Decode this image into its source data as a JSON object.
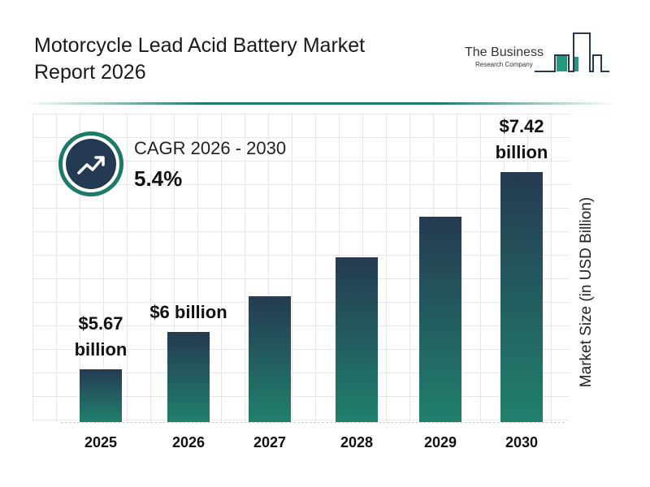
{
  "header": {
    "title": "Motorcycle Lead Acid Battery Market Report 2026",
    "logo": {
      "line1": "The Business",
      "line2": "Research Company"
    }
  },
  "cagr": {
    "label": "CAGR 2026 - 2030",
    "value": "5.4%",
    "icon": "trending-up-icon"
  },
  "colors": {
    "bar_top": "#253a52",
    "bar_bottom": "#20806c",
    "accent": "#1e7a68"
  },
  "chart_data": {
    "type": "bar",
    "categories": [
      "2025",
      "2026",
      "2027",
      "2028",
      "2029",
      "2030"
    ],
    "values": [
      5.67,
      6,
      6.32,
      6.66,
      7.02,
      7.42
    ],
    "data_labels": [
      "$5.67 billion",
      "$6 billion",
      "",
      "",
      "",
      "$7.42 billion"
    ],
    "ylabel": "Market Size (in USD Billion)",
    "xlabel": "",
    "grid": true
  }
}
